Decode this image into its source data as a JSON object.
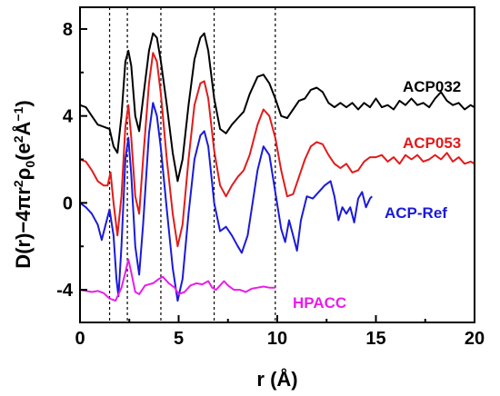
{
  "chart_data": {
    "type": "line",
    "xlabel": "r (Å)",
    "ylabel": {
      "prefix": "D(r)",
      "minus": "−4π",
      "r": "r",
      "r_exp": "2",
      "rho": "ρ",
      "rho_sub": "0",
      "paren_open": "(e",
      "e_exp": "2",
      "angstrom": "Å",
      "a_exp": "−1",
      "paren_close": ")"
    },
    "xlim": [
      0,
      20
    ],
    "ylim": [
      -5.5,
      9
    ],
    "xticks": [
      0,
      5,
      10,
      15,
      20
    ],
    "yticks": [
      -4,
      0,
      4,
      8
    ],
    "xtick_labels": [
      "0",
      "5",
      "10",
      "15",
      "20"
    ],
    "ytick_labels": [
      "-4",
      "0",
      "4",
      "8"
    ],
    "grid": false,
    "reference_lines_x": [
      1.5,
      2.4,
      4.1,
      6.8,
      9.9
    ],
    "series": [
      {
        "name": "ACP032",
        "color": "#000000",
        "points": [
          [
            0,
            4.5
          ],
          [
            0.3,
            4.4
          ],
          [
            0.6,
            4.0
          ],
          [
            0.9,
            3.6
          ],
          [
            1.2,
            3.5
          ],
          [
            1.5,
            3.4
          ],
          [
            1.7,
            2.6
          ],
          [
            1.9,
            2.3
          ],
          [
            2.1,
            4.0
          ],
          [
            2.3,
            6.5
          ],
          [
            2.45,
            7.0
          ],
          [
            2.6,
            6.3
          ],
          [
            2.8,
            4.0
          ],
          [
            3.0,
            3.3
          ],
          [
            3.2,
            4.8
          ],
          [
            3.5,
            7.0
          ],
          [
            3.7,
            7.8
          ],
          [
            3.9,
            7.6
          ],
          [
            4.1,
            6.5
          ],
          [
            4.4,
            4.5
          ],
          [
            4.7,
            2.3
          ],
          [
            4.95,
            1.0
          ],
          [
            5.2,
            2.0
          ],
          [
            5.5,
            4.5
          ],
          [
            5.8,
            6.6
          ],
          [
            6.1,
            7.6
          ],
          [
            6.3,
            7.8
          ],
          [
            6.5,
            7.0
          ],
          [
            6.8,
            4.8
          ],
          [
            7.1,
            3.4
          ],
          [
            7.4,
            3.2
          ],
          [
            7.7,
            3.6
          ],
          [
            8.0,
            3.9
          ],
          [
            8.3,
            4.2
          ],
          [
            8.6,
            5.0
          ],
          [
            9.0,
            5.8
          ],
          [
            9.3,
            5.9
          ],
          [
            9.6,
            5.5
          ],
          [
            9.9,
            4.8
          ],
          [
            10.2,
            4.0
          ],
          [
            10.5,
            3.9
          ],
          [
            10.8,
            4.3
          ],
          [
            11.1,
            4.7
          ],
          [
            11.4,
            4.8
          ],
          [
            11.7,
            5.2
          ],
          [
            12.0,
            5.3
          ],
          [
            12.3,
            5.1
          ],
          [
            12.6,
            4.6
          ],
          [
            12.9,
            4.4
          ],
          [
            13.2,
            4.6
          ],
          [
            13.5,
            4.4
          ],
          [
            13.8,
            4.6
          ],
          [
            14.1,
            4.3
          ],
          [
            14.4,
            4.6
          ],
          [
            14.7,
            4.4
          ],
          [
            15.0,
            4.8
          ],
          [
            15.3,
            4.4
          ],
          [
            15.6,
            4.5
          ],
          [
            15.9,
            4.3
          ],
          [
            16.2,
            4.7
          ],
          [
            16.5,
            4.5
          ],
          [
            16.8,
            4.8
          ],
          [
            17.1,
            4.5
          ],
          [
            17.4,
            4.6
          ],
          [
            17.7,
            4.4
          ],
          [
            18.0,
            4.8
          ],
          [
            18.3,
            5.1
          ],
          [
            18.6,
            4.7
          ],
          [
            18.9,
            4.5
          ],
          [
            19.2,
            4.6
          ],
          [
            19.5,
            4.3
          ],
          [
            19.8,
            4.5
          ],
          [
            20.0,
            4.4
          ]
        ]
      },
      {
        "name": "ACP053",
        "color": "#e11b1b",
        "points": [
          [
            0,
            2.0
          ],
          [
            0.3,
            1.9
          ],
          [
            0.6,
            1.5
          ],
          [
            0.9,
            1.0
          ],
          [
            1.2,
            0.8
          ],
          [
            1.4,
            0.8
          ],
          [
            1.55,
            1.4
          ],
          [
            1.7,
            0.0
          ],
          [
            1.9,
            -1.5
          ],
          [
            2.1,
            0.3
          ],
          [
            2.3,
            3.5
          ],
          [
            2.45,
            4.5
          ],
          [
            2.6,
            3.0
          ],
          [
            2.8,
            0.3
          ],
          [
            3.0,
            -0.5
          ],
          [
            3.2,
            2.0
          ],
          [
            3.5,
            5.5
          ],
          [
            3.7,
            6.9
          ],
          [
            3.9,
            6.5
          ],
          [
            4.1,
            5.0
          ],
          [
            4.4,
            2.0
          ],
          [
            4.7,
            -0.5
          ],
          [
            4.95,
            -2.0
          ],
          [
            5.2,
            -1.0
          ],
          [
            5.5,
            2.0
          ],
          [
            5.8,
            4.5
          ],
          [
            6.1,
            5.5
          ],
          [
            6.3,
            5.6
          ],
          [
            6.5,
            4.8
          ],
          [
            6.8,
            2.4
          ],
          [
            7.1,
            0.8
          ],
          [
            7.4,
            0.3
          ],
          [
            7.7,
            0.8
          ],
          [
            8.0,
            1.2
          ],
          [
            8.3,
            1.5
          ],
          [
            8.6,
            2.2
          ],
          [
            9.0,
            3.6
          ],
          [
            9.3,
            4.3
          ],
          [
            9.6,
            4.0
          ],
          [
            9.9,
            3.0
          ],
          [
            10.2,
            1.5
          ],
          [
            10.5,
            0.3
          ],
          [
            10.8,
            0.4
          ],
          [
            11.1,
            1.2
          ],
          [
            11.4,
            2.0
          ],
          [
            11.7,
            2.6
          ],
          [
            12.0,
            2.8
          ],
          [
            12.3,
            2.7
          ],
          [
            12.6,
            2.2
          ],
          [
            12.9,
            1.8
          ],
          [
            13.2,
            1.6
          ],
          [
            13.5,
            1.8
          ],
          [
            13.8,
            1.4
          ],
          [
            14.1,
            1.5
          ],
          [
            14.4,
            1.9
          ],
          [
            14.7,
            2.1
          ],
          [
            15.0,
            2.1
          ],
          [
            15.3,
            2.2
          ],
          [
            15.6,
            1.9
          ],
          [
            15.9,
            2.1
          ],
          [
            16.2,
            1.8
          ],
          [
            16.5,
            2.2
          ],
          [
            16.8,
            2.0
          ],
          [
            17.1,
            2.2
          ],
          [
            17.4,
            1.9
          ],
          [
            17.7,
            2.0
          ],
          [
            18.0,
            2.2
          ],
          [
            18.3,
            2.0
          ],
          [
            18.6,
            2.3
          ],
          [
            18.9,
            1.9
          ],
          [
            19.2,
            2.1
          ],
          [
            19.5,
            1.8
          ],
          [
            19.8,
            1.9
          ],
          [
            20.0,
            1.8
          ]
        ]
      },
      {
        "name": "ACP-Ref",
        "color": "#1a1adb",
        "points": [
          [
            0,
            0.0
          ],
          [
            0.3,
            -0.2
          ],
          [
            0.6,
            -0.5
          ],
          [
            0.9,
            -1.0
          ],
          [
            1.1,
            -1.7
          ],
          [
            1.3,
            -1.0
          ],
          [
            1.5,
            -0.3
          ],
          [
            1.7,
            -1.5
          ],
          [
            1.85,
            -3.5
          ],
          [
            1.95,
            -4.3
          ],
          [
            2.1,
            -2.0
          ],
          [
            2.3,
            2.0
          ],
          [
            2.45,
            3.0
          ],
          [
            2.6,
            1.3
          ],
          [
            2.8,
            -2.0
          ],
          [
            3.0,
            -3.3
          ],
          [
            3.2,
            -1.0
          ],
          [
            3.5,
            3.2
          ],
          [
            3.7,
            4.6
          ],
          [
            3.9,
            4.0
          ],
          [
            4.1,
            2.5
          ],
          [
            4.4,
            -0.3
          ],
          [
            4.7,
            -3.0
          ],
          [
            4.95,
            -4.5
          ],
          [
            5.2,
            -3.5
          ],
          [
            5.5,
            -0.5
          ],
          [
            5.8,
            2.0
          ],
          [
            6.1,
            3.1
          ],
          [
            6.3,
            3.3
          ],
          [
            6.5,
            2.6
          ],
          [
            6.8,
            0.0
          ],
          [
            7.1,
            -1.3
          ],
          [
            7.4,
            -1.1
          ],
          [
            7.7,
            -1.5
          ],
          [
            8.0,
            -2.0
          ],
          [
            8.2,
            -2.3
          ],
          [
            8.5,
            -1.5
          ],
          [
            9.0,
            1.5
          ],
          [
            9.3,
            2.6
          ],
          [
            9.6,
            2.2
          ],
          [
            9.9,
            0.5
          ],
          [
            10.2,
            -1.2
          ],
          [
            10.4,
            -1.8
          ],
          [
            10.6,
            -0.8
          ],
          [
            10.8,
            -1.5
          ],
          [
            11.0,
            -2.2
          ],
          [
            11.2,
            -0.8
          ],
          [
            11.5,
            0.3
          ],
          [
            11.8,
            0.2
          ],
          [
            12.1,
            0.5
          ],
          [
            12.4,
            0.8
          ],
          [
            12.7,
            1.0
          ],
          [
            12.9,
            0.3
          ],
          [
            13.1,
            -0.8
          ],
          [
            13.3,
            -0.2
          ],
          [
            13.5,
            -0.5
          ],
          [
            13.7,
            -0.2
          ],
          [
            13.9,
            -0.9
          ],
          [
            14.1,
            0.2
          ],
          [
            14.3,
            0.5
          ],
          [
            14.5,
            -0.2
          ],
          [
            14.7,
            0.2
          ],
          [
            14.8,
            0.3
          ]
        ]
      },
      {
        "name": "HPACC",
        "color": "#e81ee8",
        "points": [
          [
            0,
            -4.0
          ],
          [
            0.3,
            -4.05
          ],
          [
            0.6,
            -4.1
          ],
          [
            0.9,
            -4.05
          ],
          [
            1.2,
            -4.15
          ],
          [
            1.5,
            -4.4
          ],
          [
            1.8,
            -4.5
          ],
          [
            2.1,
            -3.9
          ],
          [
            2.3,
            -3.2
          ],
          [
            2.45,
            -2.6
          ],
          [
            2.6,
            -3.2
          ],
          [
            2.8,
            -4.1
          ],
          [
            3.0,
            -4.2
          ],
          [
            3.3,
            -3.8
          ],
          [
            3.7,
            -3.7
          ],
          [
            4.0,
            -3.5
          ],
          [
            4.2,
            -3.4
          ],
          [
            4.5,
            -3.7
          ],
          [
            4.8,
            -3.9
          ],
          [
            5.0,
            -4.2
          ],
          [
            5.3,
            -4.1
          ],
          [
            5.6,
            -3.8
          ],
          [
            5.9,
            -3.7
          ],
          [
            6.2,
            -3.75
          ],
          [
            6.5,
            -3.6
          ],
          [
            6.7,
            -3.9
          ],
          [
            6.9,
            -4.0
          ],
          [
            7.1,
            -3.8
          ],
          [
            7.3,
            -3.6
          ],
          [
            7.5,
            -3.8
          ],
          [
            7.8,
            -4.0
          ],
          [
            8.1,
            -4.0
          ],
          [
            8.4,
            -4.1
          ],
          [
            8.7,
            -3.95
          ],
          [
            9.0,
            -3.9
          ],
          [
            9.3,
            -3.85
          ],
          [
            9.6,
            -3.9
          ],
          [
            9.9,
            -3.9
          ]
        ]
      }
    ],
    "series_labels": [
      {
        "name": "ACP032",
        "color": "#000000"
      },
      {
        "name": "ACP053",
        "color": "#e11b1b"
      },
      {
        "name": "ACP-Ref",
        "color": "#1a1adb"
      },
      {
        "name": "HPACC",
        "color": "#e81ee8"
      }
    ]
  }
}
